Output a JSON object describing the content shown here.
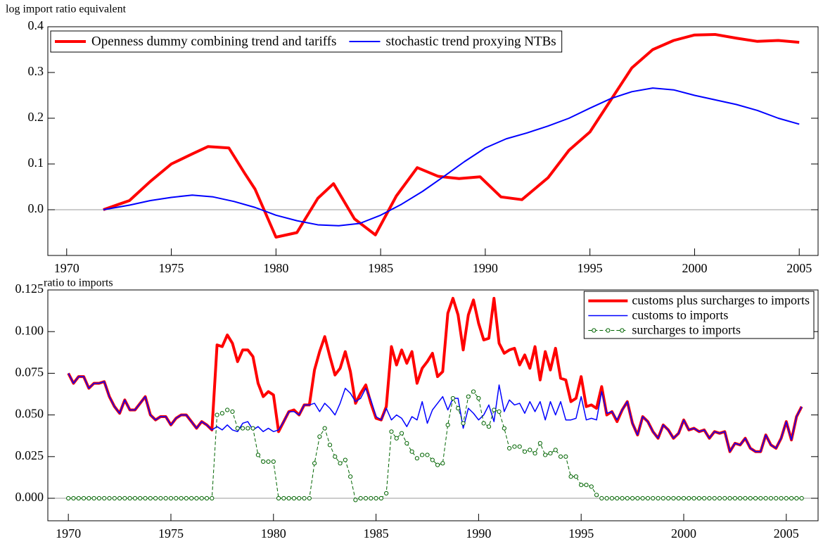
{
  "chart_data": [
    {
      "type": "line",
      "ylabel": "log import ratio equivalent",
      "xlim": [
        1969.1,
        2005.9
      ],
      "xticks": [
        1970,
        1975,
        1980,
        1985,
        1990,
        1995,
        2000,
        2005
      ],
      "ylim": [
        -0.1,
        0.4
      ],
      "yticks": [
        {
          "value": 0,
          "label": "0.0"
        },
        0.1,
        0.2,
        0.3,
        0.4
      ],
      "zero_line": true,
      "legend": "upper left",
      "series": [
        {
          "name": "Openness dummy combining trend and tariffs",
          "color": "#ff0000",
          "width": 4,
          "x": [
            1971.75,
            1972.5,
            1973,
            1974,
            1975,
            1976,
            1976.75,
            1977.75,
            1978.5,
            1979,
            1980,
            1981,
            1982,
            1982.75,
            1983.75,
            1984.75,
            1985.75,
            1986.75,
            1987.75,
            1988.75,
            1989.75,
            1990.75,
            1991.75,
            1993,
            1994,
            1995,
            1996,
            1997,
            1998,
            1999,
            2000,
            2001,
            2002,
            2003,
            2004,
            2005
          ],
          "values": [
            0.0,
            0.012,
            0.02,
            0.062,
            0.1,
            0.122,
            0.138,
            0.135,
            0.08,
            0.045,
            -0.06,
            -0.05,
            0.025,
            0.057,
            -0.02,
            -0.055,
            0.03,
            0.092,
            0.073,
            0.068,
            0.072,
            0.028,
            0.022,
            0.07,
            0.13,
            0.17,
            0.24,
            0.31,
            0.35,
            0.37,
            0.382,
            0.383,
            0.375,
            0.368,
            0.37,
            0.366
          ]
        },
        {
          "name": "stochastic trend proxying NTBs",
          "color": "#0000ff",
          "width": 2,
          "x": [
            1971.75,
            1973,
            1974,
            1975,
            1976,
            1977,
            1978,
            1979,
            1980,
            1981,
            1982,
            1983,
            1984,
            1985,
            1986,
            1987,
            1988,
            1989,
            1990,
            1991,
            1992,
            1993,
            1994,
            1995,
            1996,
            1997,
            1998,
            1999,
            2000,
            2001,
            2002,
            2003,
            2004,
            2005
          ],
          "values": [
            0.0,
            0.01,
            0.02,
            0.027,
            0.032,
            0.028,
            0.018,
            0.005,
            -0.012,
            -0.024,
            -0.033,
            -0.035,
            -0.03,
            -0.012,
            0.012,
            0.04,
            0.072,
            0.105,
            0.135,
            0.155,
            0.168,
            0.183,
            0.2,
            0.222,
            0.243,
            0.258,
            0.266,
            0.262,
            0.25,
            0.24,
            0.23,
            0.217,
            0.2,
            0.187
          ]
        }
      ]
    },
    {
      "type": "line",
      "ylabel": "ratio to imports",
      "xlim": [
        1969,
        2006.55
      ],
      "xticks": [
        1970,
        1975,
        1980,
        1985,
        1990,
        1995,
        2000,
        2005
      ],
      "ylim": [
        -0.0135,
        0.125
      ],
      "yticks": [
        {
          "value": 0,
          "label": "0.000"
        },
        0.025,
        {
          "value": 0.05,
          "label": "0.050"
        },
        0.075,
        {
          "value": 0.1,
          "label": "0.100"
        },
        0.125
      ],
      "zero_line": true,
      "legend": "upper right",
      "x": [
        1970,
        1970.25,
        1970.5,
        1970.75,
        1971,
        1971.25,
        1971.5,
        1971.75,
        1972,
        1972.25,
        1972.5,
        1972.75,
        1973,
        1973.25,
        1973.5,
        1973.75,
        1974,
        1974.25,
        1974.5,
        1974.75,
        1975,
        1975.25,
        1975.5,
        1975.75,
        1976,
        1976.25,
        1976.5,
        1976.75,
        1977,
        1977.25,
        1977.5,
        1977.75,
        1978,
        1978.25,
        1978.5,
        1978.75,
        1979,
        1979.25,
        1979.5,
        1979.75,
        1980,
        1980.25,
        1980.5,
        1980.75,
        1981,
        1981.25,
        1981.5,
        1981.75,
        1982,
        1982.25,
        1982.5,
        1982.75,
        1983,
        1983.25,
        1983.5,
        1983.75,
        1984,
        1984.25,
        1984.5,
        1984.75,
        1985,
        1985.25,
        1985.5,
        1985.75,
        1986,
        1986.25,
        1986.5,
        1986.75,
        1987,
        1987.25,
        1987.5,
        1987.75,
        1988,
        1988.25,
        1988.5,
        1988.75,
        1989,
        1989.25,
        1989.5,
        1989.75,
        1990,
        1990.25,
        1990.5,
        1990.75,
        1991,
        1991.25,
        1991.5,
        1991.75,
        1992,
        1992.25,
        1992.5,
        1992.75,
        1993,
        1993.25,
        1993.5,
        1993.75,
        1994,
        1994.25,
        1994.5,
        1994.75,
        1995,
        1995.25,
        1995.5,
        1995.75,
        1996,
        1996.25,
        1996.5,
        1996.75,
        1997,
        1997.25,
        1997.5,
        1997.75,
        1998,
        1998.25,
        1998.5,
        1998.75,
        1999,
        1999.25,
        1999.5,
        1999.75,
        2000,
        2000.25,
        2000.5,
        2000.75,
        2001,
        2001.25,
        2001.5,
        2001.75,
        2002,
        2002.25,
        2002.5,
        2002.75,
        2003,
        2003.25,
        2003.5,
        2003.75,
        2004,
        2004.25,
        2004.5,
        2004.75,
        2005,
        2005.25,
        2005.5,
        2005.75
      ],
      "series": [
        {
          "name": "customs  plus surcharges to imports",
          "color": "#ff0000",
          "width": 4,
          "values": [
            0.075,
            0.069,
            0.073,
            0.073,
            0.066,
            0.069,
            0.069,
            0.07,
            0.061,
            0.055,
            0.051,
            0.059,
            0.053,
            0.053,
            0.057,
            0.061,
            0.05,
            0.047,
            0.049,
            0.049,
            0.044,
            0.048,
            0.05,
            0.05,
            0.046,
            0.042,
            0.046,
            0.044,
            0.041,
            0.092,
            0.091,
            0.098,
            0.093,
            0.082,
            0.089,
            0.089,
            0.085,
            0.069,
            0.061,
            0.064,
            0.062,
            0.04,
            0.046,
            0.052,
            0.053,
            0.05,
            0.056,
            0.056,
            0.077,
            0.088,
            0.097,
            0.085,
            0.074,
            0.078,
            0.088,
            0.076,
            0.057,
            0.063,
            0.068,
            0.057,
            0.048,
            0.047,
            0.055,
            0.091,
            0.08,
            0.089,
            0.081,
            0.088,
            0.069,
            0.078,
            0.082,
            0.087,
            0.073,
            0.076,
            0.111,
            0.12,
            0.11,
            0.089,
            0.11,
            0.119,
            0.105,
            0.095,
            0.096,
            0.12,
            0.093,
            0.087,
            0.089,
            0.09,
            0.08,
            0.086,
            0.078,
            0.091,
            0.071,
            0.088,
            0.077,
            0.09,
            0.072,
            0.071,
            0.058,
            0.06,
            0.073,
            0.055,
            0.056,
            0.054,
            0.067,
            0.05,
            0.052,
            0.046,
            0.053,
            0.058,
            0.045,
            0.038,
            0.049,
            0.046,
            0.04,
            0.036,
            0.044,
            0.041,
            0.036,
            0.039,
            0.047,
            0.041,
            0.042,
            0.04,
            0.041,
            0.036,
            0.04,
            0.039,
            0.04,
            0.028,
            0.033,
            0.032,
            0.036,
            0.03,
            0.028,
            0.028,
            0.038,
            0.032,
            0.03,
            0.036,
            0.046,
            0.035,
            0.049,
            0.055
          ]
        },
        {
          "name": "customs  to imports",
          "color": "#0000ff",
          "width": 1.5,
          "values": [
            0.075,
            0.069,
            0.073,
            0.073,
            0.066,
            0.069,
            0.069,
            0.07,
            0.061,
            0.055,
            0.051,
            0.059,
            0.053,
            0.053,
            0.057,
            0.061,
            0.05,
            0.047,
            0.049,
            0.049,
            0.044,
            0.048,
            0.05,
            0.05,
            0.046,
            0.042,
            0.046,
            0.044,
            0.041,
            0.043,
            0.041,
            0.044,
            0.041,
            0.04,
            0.045,
            0.046,
            0.041,
            0.043,
            0.04,
            0.042,
            0.04,
            0.041,
            0.046,
            0.052,
            0.052,
            0.05,
            0.056,
            0.056,
            0.057,
            0.052,
            0.057,
            0.054,
            0.05,
            0.057,
            0.066,
            0.063,
            0.058,
            0.06,
            0.066,
            0.059,
            0.049,
            0.047,
            0.054,
            0.047,
            0.05,
            0.048,
            0.043,
            0.049,
            0.047,
            0.058,
            0.045,
            0.053,
            0.057,
            0.061,
            0.053,
            0.06,
            0.06,
            0.042,
            0.054,
            0.051,
            0.047,
            0.05,
            0.056,
            0.046,
            0.068,
            0.052,
            0.059,
            0.056,
            0.057,
            0.051,
            0.058,
            0.052,
            0.058,
            0.047,
            0.058,
            0.05,
            0.058,
            0.047,
            0.047,
            0.048,
            0.061,
            0.047,
            0.048,
            0.047,
            0.064,
            0.051,
            0.052,
            0.047,
            0.053,
            0.058,
            0.045,
            0.038,
            0.049,
            0.046,
            0.04,
            0.036,
            0.044,
            0.041,
            0.036,
            0.039,
            0.047,
            0.041,
            0.042,
            0.04,
            0.041,
            0.036,
            0.04,
            0.039,
            0.04,
            0.028,
            0.033,
            0.032,
            0.036,
            0.03,
            0.028,
            0.028,
            0.038,
            0.032,
            0.03,
            0.036,
            0.046,
            0.035,
            0.049,
            0.055
          ]
        },
        {
          "name": "surcharges to imports",
          "color": "#006400",
          "width": 1,
          "dashed": true,
          "markers": true,
          "values": [
            0,
            0,
            0,
            0,
            0,
            0,
            0,
            0,
            0,
            0,
            0,
            0,
            0,
            0,
            0,
            0,
            0,
            0,
            0,
            0,
            0,
            0,
            0,
            0,
            0,
            0,
            0,
            0,
            0,
            0.05,
            0.051,
            0.053,
            0.052,
            0.042,
            0.042,
            0.042,
            0.042,
            0.026,
            0.022,
            0.022,
            0.022,
            0,
            0,
            0,
            0,
            0,
            0,
            0,
            0.021,
            0.037,
            0.042,
            0.032,
            0.025,
            0.021,
            0.023,
            0.013,
            -0.001,
            0,
            0,
            0,
            0,
            0,
            0.003,
            0.04,
            0.036,
            0.039,
            0.033,
            0.028,
            0.024,
            0.026,
            0.026,
            0.023,
            0.02,
            0.021,
            0.044,
            0.06,
            0.054,
            0.045,
            0.061,
            0.064,
            0.06,
            0.045,
            0.043,
            0.053,
            0.052,
            0.042,
            0.03,
            0.031,
            0.031,
            0.028,
            0.029,
            0.027,
            0.033,
            0.026,
            0.027,
            0.029,
            0.025,
            0.025,
            0.013,
            0.013,
            0.008,
            0.008,
            0.007,
            0.002,
            0,
            0,
            0,
            0,
            0,
            0,
            0,
            0,
            0,
            0,
            0,
            0,
            0,
            0,
            0,
            0,
            0,
            0,
            0,
            0,
            0,
            0,
            0,
            0,
            0,
            0,
            0,
            0,
            0,
            0,
            0,
            0,
            0,
            0,
            0,
            0,
            0,
            0,
            0,
            0
          ]
        }
      ]
    }
  ]
}
